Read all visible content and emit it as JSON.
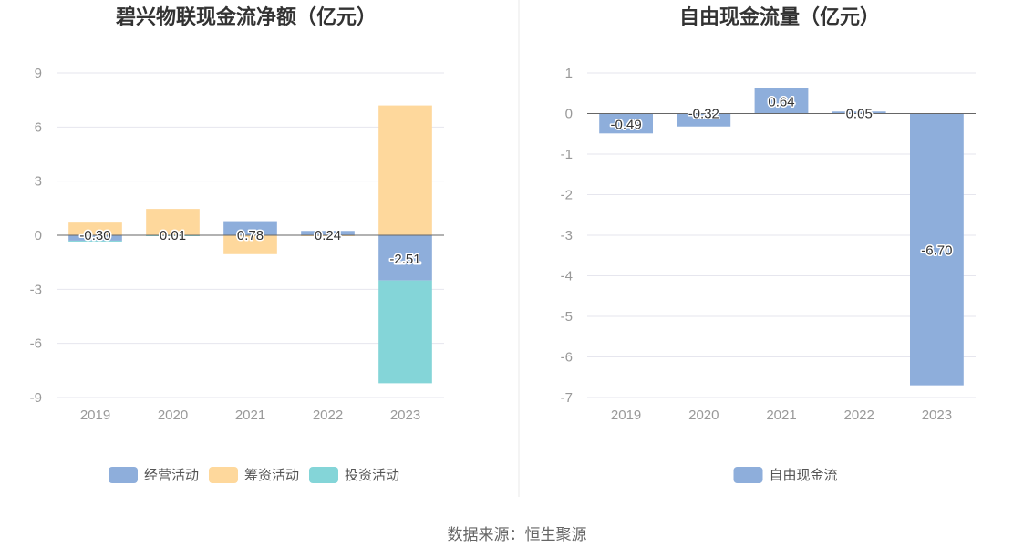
{
  "colors": {
    "operating": "#8eaedb",
    "financing": "#fed89c",
    "investing": "#84d5d8",
    "free_cash_flow": "#8eaedb",
    "grid": "#e6e6ee",
    "axis": "#666666",
    "divider": "#e8e8e8"
  },
  "chart_data": [
    {
      "type": "bar",
      "stacked": true,
      "title": "碧兴物联现金流净额（亿元）",
      "categories": [
        "2019",
        "2020",
        "2021",
        "2022",
        "2023"
      ],
      "yticks": [
        "9",
        "6",
        "3",
        "0",
        "-3",
        "-6",
        "-9"
      ],
      "ylim": [
        -9,
        9
      ],
      "grid": true,
      "legend_position": "bottom",
      "series": [
        {
          "name": "经营活动",
          "values": [
            -0.3,
            0.01,
            0.78,
            0.24,
            -2.51
          ],
          "color": "#8eaedb"
        },
        {
          "name": "筹资活动",
          "values": [
            0.7,
            1.45,
            -1.05,
            -0.05,
            7.2
          ],
          "color": "#fed89c"
        },
        {
          "name": "投资活动",
          "values": [
            -0.05,
            -0.05,
            0.0,
            0.0,
            -5.7
          ],
          "color": "#84d5d8"
        }
      ],
      "data_labels": [
        "-0.30",
        "0.01",
        "0.78",
        "0.24",
        "-2.51"
      ]
    },
    {
      "type": "bar",
      "title": "自由现金流量（亿元）",
      "categories": [
        "2019",
        "2020",
        "2021",
        "2022",
        "2023"
      ],
      "yticks": [
        "1",
        "0",
        "-1",
        "-2",
        "-3",
        "-4",
        "-5",
        "-6",
        "-7"
      ],
      "ylim": [
        -7,
        1
      ],
      "grid": true,
      "legend_position": "bottom",
      "series": [
        {
          "name": "自由现金流",
          "values": [
            -0.49,
            -0.32,
            0.64,
            0.05,
            -6.7
          ],
          "color": "#8eaedb"
        }
      ],
      "data_labels": [
        "-0.49",
        "-0.32",
        "0.64",
        "0.05",
        "-6.70"
      ]
    }
  ],
  "footer": {
    "source": "数据来源：恒生聚源"
  }
}
